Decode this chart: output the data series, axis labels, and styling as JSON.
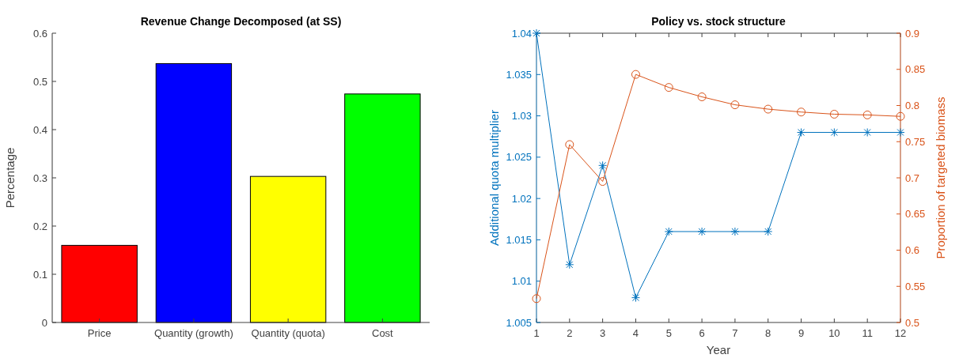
{
  "chart_data": [
    {
      "type": "bar",
      "title": "Revenue Change Decomposed (at SS)",
      "ylabel": "Percentage",
      "categories": [
        "Price",
        "Quantity (growth)",
        "Quantity (quota)",
        "Cost"
      ],
      "values": [
        0.16,
        0.537,
        0.303,
        0.474
      ],
      "colors": [
        "#ff0000",
        "#0000ff",
        "#ffff00",
        "#00ff00"
      ],
      "ylim": [
        0,
        0.6
      ],
      "yticks": [
        0,
        0.1,
        0.2,
        0.3,
        0.4,
        0.5,
        0.6
      ],
      "grid": false
    },
    {
      "type": "line",
      "title": "Policy vs. stock structure",
      "xlabel": "Year",
      "ylabel": "Additional quota multiplier",
      "y2label": "Proportion of targeted biomass",
      "x": [
        1,
        2,
        3,
        4,
        5,
        6,
        7,
        8,
        9,
        10,
        11,
        12
      ],
      "xlim": [
        1,
        12
      ],
      "xticks": [
        1,
        2,
        3,
        4,
        5,
        6,
        7,
        8,
        9,
        10,
        11,
        12
      ],
      "ylim": [
        1.005,
        1.04
      ],
      "yticks": [
        1.005,
        1.01,
        1.015,
        1.02,
        1.025,
        1.03,
        1.035,
        1.04
      ],
      "y2lim": [
        0.5,
        0.9
      ],
      "y2ticks": [
        0.5,
        0.55,
        0.6,
        0.65,
        0.7,
        0.75,
        0.8,
        0.85,
        0.9
      ],
      "grid": false,
      "series": [
        {
          "color": "#0072bd",
          "marker": "cross",
          "values": [
            1.04,
            1.012,
            1.024,
            1.008,
            1.016,
            1.016,
            1.016,
            1.016,
            1.028,
            1.028,
            1.028,
            1.028
          ]
        },
        {
          "color": "#d95319",
          "marker": "circle",
          "axis": "y2",
          "values": [
            0.533,
            0.746,
            0.695,
            0.843,
            0.825,
            0.812,
            0.801,
            0.795,
            0.791,
            0.788,
            0.787,
            0.785
          ]
        }
      ]
    }
  ]
}
